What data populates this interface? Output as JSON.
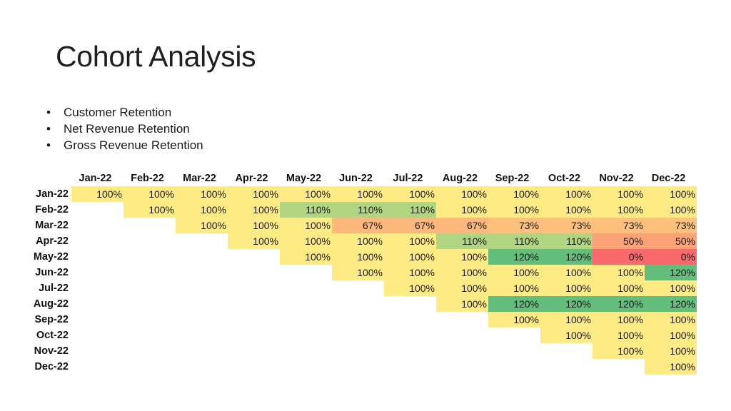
{
  "slide": {
    "title": "Cohort Analysis",
    "bullets": [
      "Customer Retention",
      "Net Revenue Retention",
      "Gross Revenue Retention"
    ],
    "bullet_char": "•"
  },
  "cohort_table": {
    "columns": [
      "Jan-22",
      "Feb-22",
      "Mar-22",
      "Apr-22",
      "May-22",
      "Jun-22",
      "Jul-22",
      "Aug-22",
      "Sep-22",
      "Oct-22",
      "Nov-22",
      "Dec-22"
    ],
    "rows": [
      {
        "label": "Jan-22",
        "values": [
          "100%",
          "100%",
          "100%",
          "100%",
          "100%",
          "100%",
          "100%",
          "100%",
          "100%",
          "100%",
          "100%",
          "100%"
        ]
      },
      {
        "label": "Feb-22",
        "values": [
          "",
          "100%",
          "100%",
          "100%",
          "110%",
          "110%",
          "110%",
          "100%",
          "100%",
          "100%",
          "100%",
          "100%"
        ]
      },
      {
        "label": "Mar-22",
        "values": [
          "",
          "",
          "100%",
          "100%",
          "100%",
          "67%",
          "67%",
          "67%",
          "73%",
          "73%",
          "73%",
          "73%"
        ]
      },
      {
        "label": "Apr-22",
        "values": [
          "",
          "",
          "",
          "100%",
          "100%",
          "100%",
          "100%",
          "110%",
          "110%",
          "110%",
          "50%",
          "50%"
        ]
      },
      {
        "label": "May-22",
        "values": [
          "",
          "",
          "",
          "",
          "100%",
          "100%",
          "100%",
          "100%",
          "120%",
          "120%",
          "0%",
          "0%"
        ]
      },
      {
        "label": "Jun-22",
        "values": [
          "",
          "",
          "",
          "",
          "",
          "100%",
          "100%",
          "100%",
          "100%",
          "100%",
          "100%",
          "120%"
        ]
      },
      {
        "label": "Jul-22",
        "values": [
          "",
          "",
          "",
          "",
          "",
          "",
          "100%",
          "100%",
          "100%",
          "100%",
          "100%",
          "100%"
        ]
      },
      {
        "label": "Aug-22",
        "values": [
          "",
          "",
          "",
          "",
          "",
          "",
          "",
          "100%",
          "120%",
          "120%",
          "120%",
          "120%"
        ]
      },
      {
        "label": "Sep-22",
        "values": [
          "",
          "",
          "",
          "",
          "",
          "",
          "",
          "",
          "100%",
          "100%",
          "100%",
          "100%"
        ]
      },
      {
        "label": "Oct-22",
        "values": [
          "",
          "",
          "",
          "",
          "",
          "",
          "",
          "",
          "",
          "100%",
          "100%",
          "100%"
        ]
      },
      {
        "label": "Nov-22",
        "values": [
          "",
          "",
          "",
          "",
          "",
          "",
          "",
          "",
          "",
          "",
          "100%",
          "100%"
        ]
      },
      {
        "label": "Dec-22",
        "values": [
          "",
          "",
          "",
          "",
          "",
          "",
          "",
          "",
          "",
          "",
          "",
          "100%"
        ]
      }
    ],
    "color_scale": {
      "0%": "#f8696b",
      "50%": "#fba276",
      "67%": "#fcb77a",
      "73%": "#fcc07c",
      "100%": "#ffeb84",
      "110%": "#b1d580",
      "120%": "#63be7b"
    }
  }
}
